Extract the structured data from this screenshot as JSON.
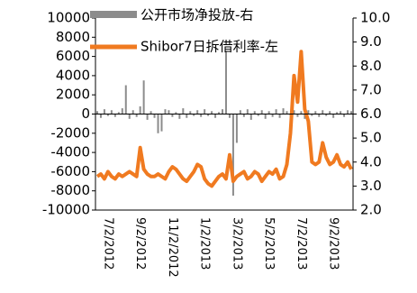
{
  "chart_data": {
    "type": "bar_line",
    "categories": [
      null,
      null,
      null,
      "7/2/2012",
      null,
      null,
      null,
      null,
      null,
      null,
      null,
      null,
      "9/2/2012",
      null,
      null,
      null,
      null,
      null,
      null,
      null,
      null,
      "11/2/2012",
      null,
      null,
      null,
      null,
      null,
      null,
      null,
      null,
      "1/2/2013",
      null,
      null,
      null,
      null,
      null,
      null,
      null,
      null,
      "3/2/2013",
      null,
      null,
      null,
      null,
      null,
      null,
      null,
      null,
      "5/2/2013",
      null,
      null,
      null,
      null,
      null,
      null,
      null,
      null,
      "7/2/2013",
      null,
      null,
      null,
      null,
      null,
      null,
      null,
      null,
      "9/2/2013",
      null,
      null,
      null,
      null,
      null
    ],
    "series": [
      {
        "name": "公开市场净投放-右",
        "color": "#8c8c8c",
        "type": "bar",
        "axis": "y",
        "values": [
          300,
          -400,
          500,
          -200,
          400,
          -300,
          200,
          600,
          3000,
          -500,
          400,
          -300,
          800,
          3500,
          -600,
          300,
          -400,
          -2000,
          -1800,
          500,
          400,
          -300,
          200,
          -500,
          600,
          -400,
          300,
          -200,
          400,
          -300,
          500,
          -200,
          300,
          -400,
          200,
          500,
          6500,
          -400,
          -8500,
          -3000,
          400,
          -300,
          500,
          -600,
          300,
          -200,
          400,
          -500,
          300,
          -300,
          500,
          -400,
          600,
          300,
          -200,
          400,
          -300,
          300,
          -500,
          400,
          -200,
          300,
          -300,
          400,
          -200,
          300,
          -400,
          200,
          300,
          -300,
          400,
          300
        ]
      },
      {
        "name": "Shibor7日拆借利率-左",
        "color": "#f07a20",
        "type": "line",
        "axis": "y2",
        "values": [
          3.4,
          3.5,
          3.3,
          3.6,
          3.4,
          3.3,
          3.5,
          3.4,
          3.5,
          3.6,
          3.5,
          3.4,
          4.6,
          3.7,
          3.5,
          3.4,
          3.4,
          3.5,
          3.4,
          3.3,
          3.6,
          3.8,
          3.7,
          3.5,
          3.3,
          3.2,
          3.4,
          3.6,
          3.9,
          3.8,
          3.3,
          3.1,
          3.0,
          3.2,
          3.4,
          3.5,
          3.3,
          4.3,
          3.2,
          3.4,
          3.5,
          3.6,
          3.3,
          3.4,
          3.6,
          3.5,
          3.2,
          3.4,
          3.6,
          3.5,
          3.7,
          3.3,
          3.4,
          3.9,
          5.2,
          7.6,
          6.5,
          8.6,
          6.2,
          5.7,
          4.0,
          3.9,
          4.0,
          4.8,
          4.2,
          3.9,
          4.0,
          4.3,
          3.9,
          3.8,
          4.0,
          3.7
        ]
      }
    ],
    "ylim": [
      -10000,
      10000
    ],
    "yticks": [
      -10000,
      -8000,
      -6000,
      -4000,
      -2000,
      0,
      2000,
      4000,
      6000,
      8000,
      10000
    ],
    "y2lim": [
      2,
      10
    ],
    "y2ticks": [
      {
        "value": 2,
        "label": "2.0"
      },
      {
        "value": 3,
        "label": "3.0"
      },
      {
        "value": 4,
        "label": "4.0"
      },
      {
        "value": 5,
        "label": "5.0"
      },
      {
        "value": 6,
        "label": "6.0"
      },
      {
        "value": 7,
        "label": "7.0"
      },
      {
        "value": 8,
        "label": "8.0"
      },
      {
        "value": 9,
        "label": "9.0"
      },
      {
        "value": 10,
        "label": "10.0"
      }
    ]
  }
}
